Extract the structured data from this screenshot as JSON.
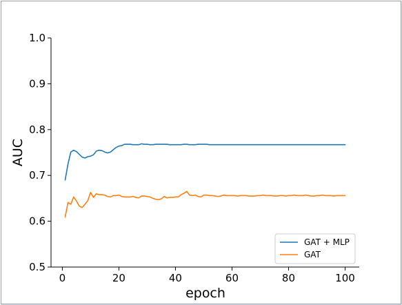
{
  "chart_data": {
    "type": "line",
    "title": "",
    "xlabel": "epoch",
    "ylabel": "AUC",
    "xlim": [
      -4,
      105
    ],
    "ylim": [
      0.5,
      1.0
    ],
    "xticks": [
      0,
      20,
      40,
      60,
      80,
      100
    ],
    "yticks": [
      0.5,
      0.6,
      0.7,
      0.8,
      0.9,
      1.0
    ],
    "xtick_labels": [
      "0",
      "20",
      "40",
      "60",
      "80",
      "100"
    ],
    "ytick_labels": [
      "0.5",
      "0.6",
      "0.7",
      "0.8",
      "0.9",
      "1.0"
    ],
    "grid": false,
    "legend_position": "bottom-right",
    "series": [
      {
        "name": "GAT + MLP",
        "color": "#1f77b4",
        "x": [
          1,
          2,
          3,
          4,
          5,
          6,
          7,
          8,
          9,
          10,
          11,
          12,
          13,
          14,
          15,
          16,
          17,
          18,
          19,
          20,
          21,
          22,
          23,
          24,
          25,
          26,
          27,
          28,
          29,
          30,
          31,
          32,
          33,
          34,
          35,
          36,
          37,
          38,
          39,
          40,
          41,
          42,
          43,
          44,
          45,
          46,
          47,
          48,
          49,
          50,
          51,
          52,
          53,
          54,
          55,
          56,
          57,
          58,
          59,
          60,
          61,
          62,
          63,
          64,
          65,
          66,
          67,
          68,
          69,
          70,
          71,
          72,
          73,
          74,
          75,
          76,
          77,
          78,
          79,
          80,
          81,
          82,
          83,
          84,
          85,
          86,
          87,
          88,
          89,
          90,
          91,
          92,
          93,
          94,
          95,
          96,
          97,
          98,
          99,
          100
        ],
        "y": [
          0.69,
          0.725,
          0.751,
          0.755,
          0.752,
          0.746,
          0.74,
          0.738,
          0.741,
          0.742,
          0.745,
          0.753,
          0.755,
          0.754,
          0.751,
          0.749,
          0.751,
          0.756,
          0.761,
          0.764,
          0.765,
          0.768,
          0.768,
          0.768,
          0.767,
          0.767,
          0.767,
          0.769,
          0.768,
          0.768,
          0.767,
          0.767,
          0.768,
          0.768,
          0.768,
          0.768,
          0.768,
          0.767,
          0.767,
          0.767,
          0.767,
          0.767,
          0.768,
          0.768,
          0.767,
          0.767,
          0.767,
          0.768,
          0.768,
          0.768,
          0.768,
          0.767,
          0.767,
          0.767,
          0.767,
          0.767,
          0.767,
          0.767,
          0.767,
          0.767,
          0.767,
          0.767,
          0.767,
          0.767,
          0.767,
          0.767,
          0.767,
          0.767,
          0.767,
          0.767,
          0.767,
          0.767,
          0.767,
          0.767,
          0.767,
          0.767,
          0.767,
          0.767,
          0.767,
          0.767,
          0.767,
          0.767,
          0.767,
          0.767,
          0.767,
          0.767,
          0.767,
          0.767,
          0.767,
          0.767,
          0.767,
          0.767,
          0.767,
          0.767,
          0.767,
          0.767,
          0.767,
          0.767,
          0.767,
          0.767
        ]
      },
      {
        "name": "GAT",
        "color": "#ff7f0e",
        "x": [
          1,
          2,
          3,
          4,
          5,
          6,
          7,
          8,
          9,
          10,
          11,
          12,
          13,
          14,
          15,
          16,
          17,
          18,
          19,
          20,
          21,
          22,
          23,
          24,
          25,
          26,
          27,
          28,
          29,
          30,
          31,
          32,
          33,
          34,
          35,
          36,
          37,
          38,
          39,
          40,
          41,
          42,
          43,
          44,
          45,
          46,
          47,
          48,
          49,
          50,
          51,
          52,
          53,
          54,
          55,
          56,
          57,
          58,
          59,
          60,
          61,
          62,
          63,
          64,
          65,
          66,
          67,
          68,
          69,
          70,
          71,
          72,
          73,
          74,
          75,
          76,
          77,
          78,
          79,
          80,
          81,
          82,
          83,
          84,
          85,
          86,
          87,
          88,
          89,
          90,
          91,
          92,
          93,
          94,
          95,
          96,
          97,
          98,
          99,
          100
        ],
        "y": [
          0.609,
          0.641,
          0.637,
          0.653,
          0.644,
          0.633,
          0.63,
          0.637,
          0.645,
          0.663,
          0.652,
          0.66,
          0.658,
          0.658,
          0.657,
          0.654,
          0.653,
          0.656,
          0.656,
          0.657,
          0.654,
          0.653,
          0.653,
          0.653,
          0.654,
          0.652,
          0.651,
          0.655,
          0.655,
          0.654,
          0.653,
          0.65,
          0.648,
          0.647,
          0.649,
          0.654,
          0.651,
          0.652,
          0.652,
          0.653,
          0.653,
          0.658,
          0.661,
          0.665,
          0.657,
          0.656,
          0.657,
          0.654,
          0.653,
          0.657,
          0.657,
          0.656,
          0.656,
          0.655,
          0.654,
          0.655,
          0.657,
          0.656,
          0.656,
          0.656,
          0.656,
          0.655,
          0.656,
          0.656,
          0.656,
          0.655,
          0.655,
          0.655,
          0.656,
          0.656,
          0.657,
          0.656,
          0.656,
          0.656,
          0.655,
          0.655,
          0.656,
          0.656,
          0.655,
          0.656,
          0.656,
          0.657,
          0.656,
          0.656,
          0.656,
          0.657,
          0.656,
          0.655,
          0.655,
          0.656,
          0.656,
          0.657,
          0.656,
          0.656,
          0.656,
          0.655,
          0.656,
          0.656,
          0.656,
          0.656
        ]
      }
    ]
  }
}
